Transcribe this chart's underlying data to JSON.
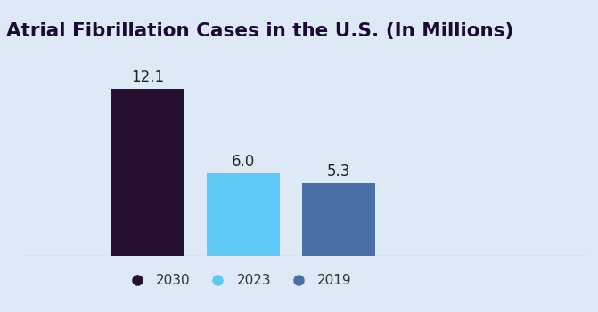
{
  "title": "Atrial Fibrillation Cases in the U.S. (In Millions)",
  "categories": [
    "2030",
    "2023",
    "2019"
  ],
  "values": [
    12.1,
    6.0,
    5.3
  ],
  "bar_colors": [
    "#261132",
    "#5bc8f5",
    "#4a6fa5"
  ],
  "background_color": "#dde9f5",
  "bar_width": 0.13,
  "ylim": [
    0,
    14.5
  ],
  "xlim": [
    0,
    1
  ],
  "title_fontsize": 15.5,
  "value_label_fontsize": 12,
  "value_label_color": "#222222",
  "legend_labels": [
    "2030",
    "2023",
    "2019"
  ],
  "legend_colors": [
    "#261132",
    "#5bc8f5",
    "#4a6fa5"
  ],
  "bar_positions": [
    0.22,
    0.39,
    0.56
  ],
  "bottom_line_color": "#bbbbbb",
  "title_color": "#1a0a35"
}
